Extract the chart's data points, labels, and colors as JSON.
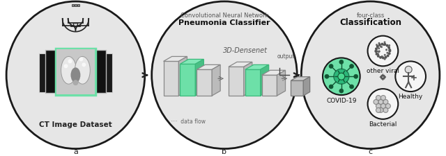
{
  "fig_width": 6.4,
  "fig_height": 2.26,
  "dpi": 100,
  "background_color": "#ffffff",
  "ellipse_fill": "#e6e6e6",
  "ellipse_edge": "#1a1a1a",
  "green_fill": "#6de0a8",
  "green_edge": "#3ab87a",
  "gray_cube": "#d8d8d8",
  "gray_cube_dark": "#bbbbbb",
  "panel_a_label": "a",
  "panel_b_label": "b",
  "panel_c_label": "c",
  "panel_a_title": "CT Image Dataset",
  "panel_b_title1": "Convolutional Neural Network",
  "panel_b_title2": "Pneumonia Classifier",
  "panel_b_subtitle": "3D-Densenet",
  "panel_b_flow": "····  data flow",
  "panel_b_output": "output",
  "panel_c_title1": "four-class",
  "panel_c_title2": "Classification",
  "panel_c_covid": "COVID-19",
  "panel_c_other": "other viral",
  "panel_c_healthy": "Healthy",
  "panel_c_bacterial": "Bacterial"
}
